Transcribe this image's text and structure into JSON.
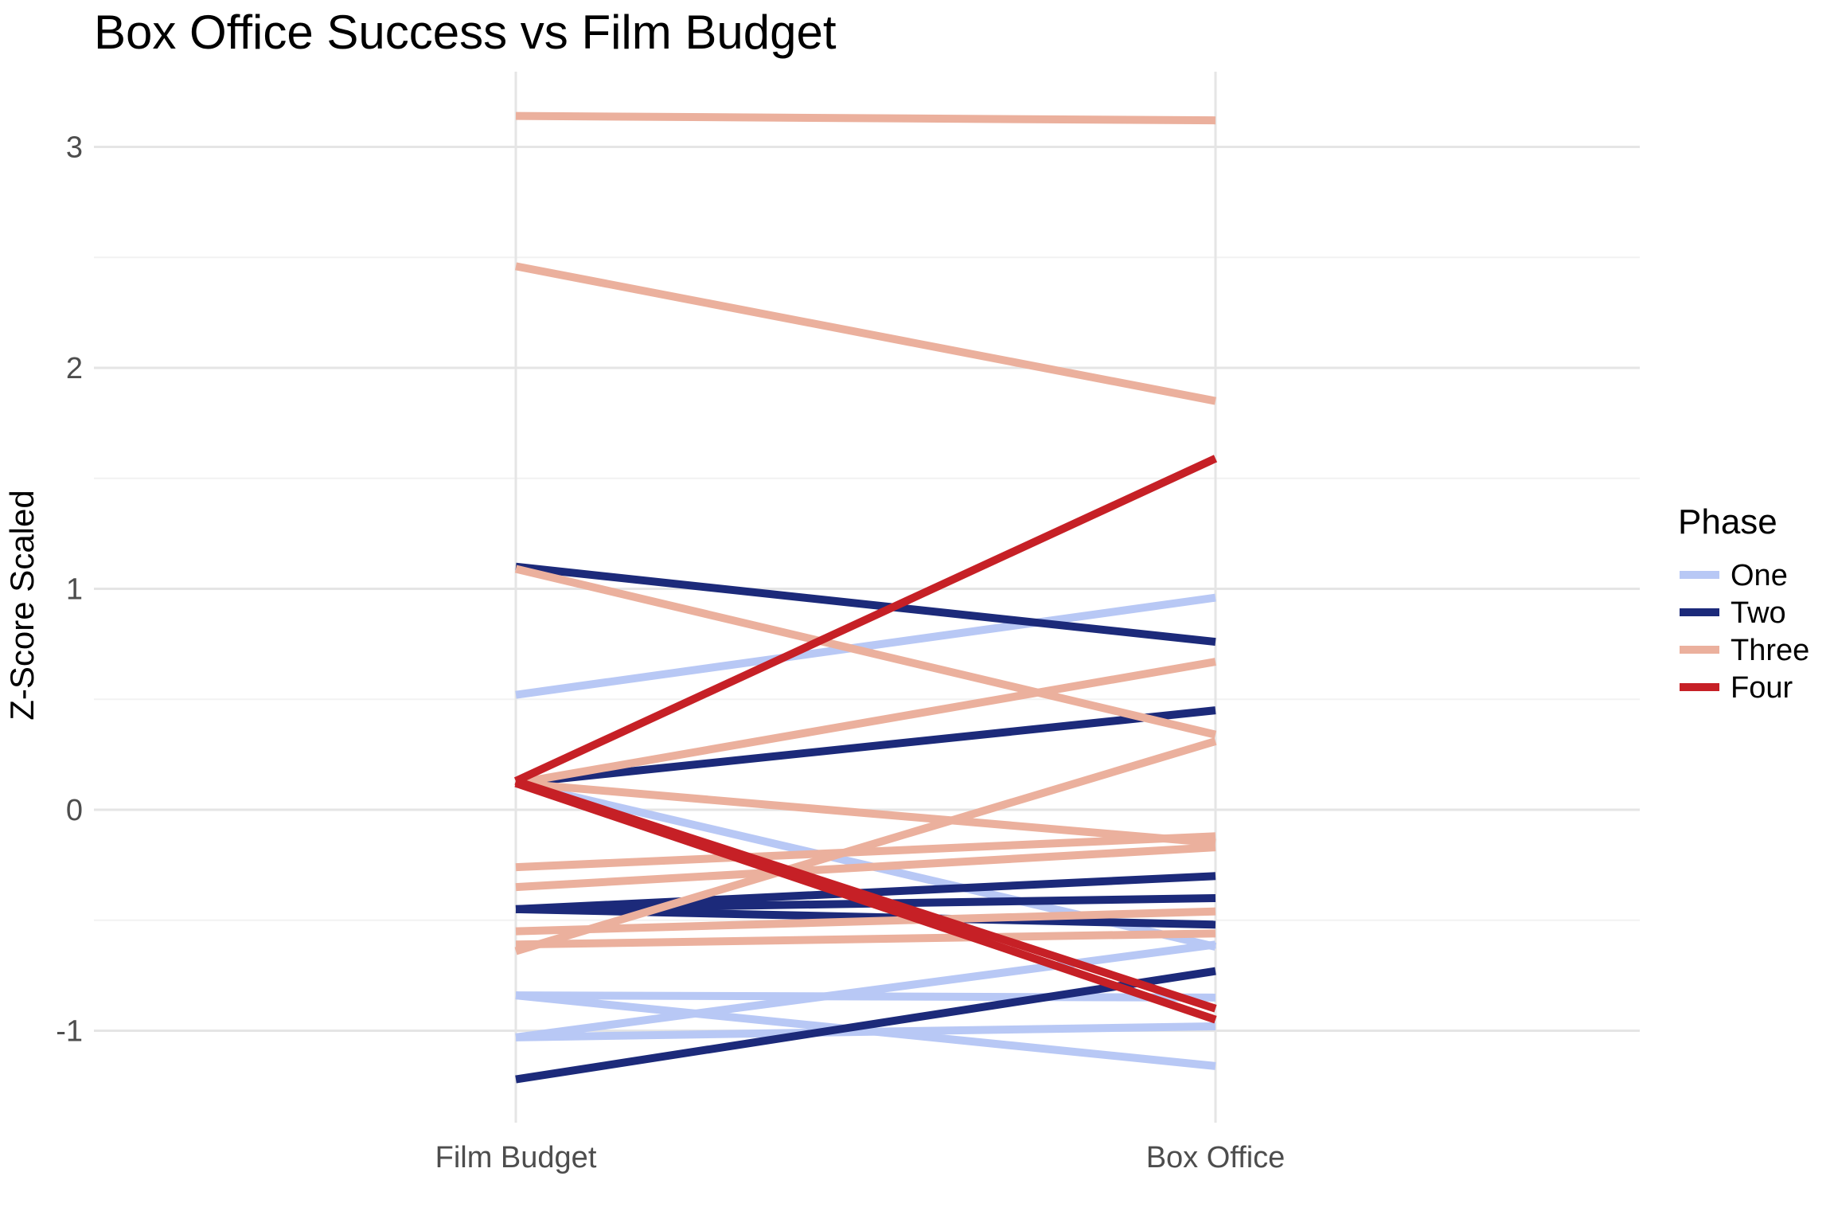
{
  "chart_data": {
    "type": "line",
    "title": "Box Office Success vs Film Budget",
    "xlabel": "",
    "ylabel": "Z-Score Scaled",
    "categories": [
      "Film Budget",
      "Box Office"
    ],
    "ylim": [
      -1.3,
      3.35
    ],
    "y_ticks": [
      -1,
      0,
      1,
      2,
      3
    ],
    "y_tick_labels": [
      "-1",
      "0",
      "1",
      "2",
      "3"
    ],
    "grid": true,
    "legend": {
      "title": "Phase",
      "position": "right",
      "entries": [
        {
          "label": "One",
          "color": "#b8c8f5"
        },
        {
          "label": "Two",
          "color": "#1c2a7a"
        },
        {
          "label": "Three",
          "color": "#ebb09d"
        },
        {
          "label": "Four",
          "color": "#c62026"
        }
      ]
    },
    "series": [
      {
        "phase": "One",
        "values": [
          0.52,
          0.96
        ]
      },
      {
        "phase": "One",
        "values": [
          0.12,
          -0.62
        ]
      },
      {
        "phase": "One",
        "values": [
          -0.84,
          -0.85
        ]
      },
      {
        "phase": "One",
        "values": [
          -0.84,
          -1.16
        ]
      },
      {
        "phase": "One",
        "values": [
          -1.03,
          -0.61
        ]
      },
      {
        "phase": "One",
        "values": [
          -1.03,
          -0.98
        ]
      },
      {
        "phase": "Two",
        "values": [
          1.1,
          0.76
        ]
      },
      {
        "phase": "Two",
        "values": [
          0.12,
          0.45
        ]
      },
      {
        "phase": "Two",
        "values": [
          -0.45,
          -0.3
        ]
      },
      {
        "phase": "Two",
        "values": [
          -0.45,
          -0.4
        ]
      },
      {
        "phase": "Two",
        "values": [
          -0.45,
          -0.52
        ]
      },
      {
        "phase": "Two",
        "values": [
          -1.22,
          -0.73
        ]
      },
      {
        "phase": "Three",
        "values": [
          3.14,
          3.12
        ]
      },
      {
        "phase": "Three",
        "values": [
          2.46,
          1.85
        ]
      },
      {
        "phase": "Three",
        "values": [
          1.09,
          0.34
        ]
      },
      {
        "phase": "Three",
        "values": [
          0.12,
          0.67
        ]
      },
      {
        "phase": "Three",
        "values": [
          0.12,
          -0.15
        ]
      },
      {
        "phase": "Three",
        "values": [
          -0.26,
          -0.12
        ]
      },
      {
        "phase": "Three",
        "values": [
          -0.35,
          -0.17
        ]
      },
      {
        "phase": "Three",
        "values": [
          -0.64,
          0.31
        ]
      },
      {
        "phase": "Three",
        "values": [
          -0.55,
          -0.46
        ]
      },
      {
        "phase": "Three",
        "values": [
          -0.61,
          -0.56
        ]
      },
      {
        "phase": "Four",
        "values": [
          0.13,
          1.59
        ]
      },
      {
        "phase": "Four",
        "values": [
          0.13,
          -0.9
        ]
      },
      {
        "phase": "Four",
        "values": [
          0.12,
          -0.95
        ]
      }
    ]
  }
}
